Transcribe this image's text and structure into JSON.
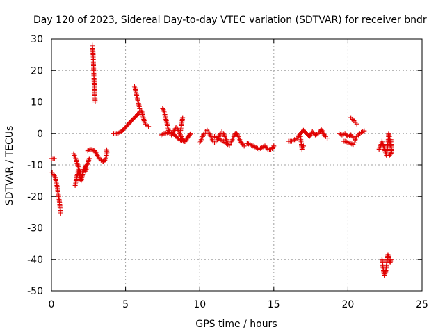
{
  "chart_data": {
    "type": "scatter",
    "title": "Day 120 of 2023, Sidereal Day-to-day VTEC variation (SDTVAR) for receiver bndr",
    "xlabel": "GPS time / hours",
    "ylabel": "SDTVAR / TECUs",
    "xlim": [
      0,
      25
    ],
    "ylim": [
      -50,
      30
    ],
    "xticks": [
      0,
      5,
      10,
      15,
      20,
      25
    ],
    "yticks": [
      -50,
      -40,
      -30,
      -20,
      -10,
      0,
      10,
      20,
      30
    ],
    "grid": true,
    "marker": "plus",
    "color": "#e00000",
    "segments": [
      [
        [
          0.0,
          -8
        ],
        [
          0.1,
          -8
        ],
        [
          0.2,
          -8
        ]
      ],
      [
        [
          0.05,
          -12.5
        ],
        [
          0.15,
          -13
        ],
        [
          0.25,
          -14
        ],
        [
          0.35,
          -16
        ],
        [
          0.45,
          -19
        ],
        [
          0.55,
          -22
        ],
        [
          0.62,
          -25.5
        ]
      ],
      [
        [
          1.6,
          -16.5
        ],
        [
          1.7,
          -14
        ],
        [
          1.8,
          -12
        ],
        [
          1.9,
          -13.5
        ],
        [
          2.0,
          -15
        ],
        [
          2.1,
          -13
        ],
        [
          2.2,
          -11
        ],
        [
          2.3,
          -12
        ],
        [
          2.4,
          -11
        ]
      ],
      [
        [
          1.5,
          -6.5
        ],
        [
          1.6,
          -7.5
        ],
        [
          1.7,
          -9
        ],
        [
          1.8,
          -10.5
        ],
        [
          1.9,
          -12
        ],
        [
          2.0,
          -13
        ],
        [
          2.1,
          -12.5
        ],
        [
          2.2,
          -11.5
        ],
        [
          2.3,
          -10.5
        ],
        [
          2.45,
          -9.5
        ],
        [
          2.55,
          -8
        ]
      ],
      [
        [
          2.45,
          -5.5
        ],
        [
          2.6,
          -5
        ],
        [
          2.75,
          -5.2
        ],
        [
          2.9,
          -5.5
        ],
        [
          3.0,
          -6.2
        ],
        [
          3.1,
          -7
        ],
        [
          3.2,
          -7.8
        ],
        [
          3.35,
          -8.5
        ],
        [
          3.5,
          -9
        ],
        [
          3.6,
          -8.5
        ],
        [
          3.7,
          -7.5
        ],
        [
          3.75,
          -6
        ],
        [
          3.72,
          -5.2
        ]
      ],
      [
        [
          2.75,
          28
        ],
        [
          2.8,
          26
        ],
        [
          2.82,
          24
        ],
        [
          2.85,
          20
        ],
        [
          2.88,
          16
        ],
        [
          2.92,
          13
        ],
        [
          2.95,
          10
        ]
      ],
      [
        [
          4.2,
          0
        ],
        [
          4.4,
          0
        ],
        [
          4.6,
          0.3
        ],
        [
          4.8,
          1
        ],
        [
          5.0,
          2
        ],
        [
          5.2,
          3
        ],
        [
          5.4,
          4
        ],
        [
          5.6,
          5
        ],
        [
          5.8,
          6
        ],
        [
          5.95,
          6.8
        ],
        [
          6.05,
          7.2
        ],
        [
          6.1,
          6.8
        ],
        [
          6.15,
          6
        ],
        [
          6.25,
          4
        ],
        [
          6.35,
          3
        ],
        [
          6.45,
          2.5
        ],
        [
          6.55,
          2.2
        ]
      ],
      [
        [
          5.6,
          15
        ],
        [
          5.7,
          13
        ],
        [
          5.8,
          11
        ],
        [
          5.9,
          9
        ],
        [
          5.95,
          8
        ]
      ],
      [
        [
          7.5,
          8
        ],
        [
          7.6,
          7
        ],
        [
          7.7,
          5
        ],
        [
          7.8,
          3
        ],
        [
          7.9,
          1
        ],
        [
          8.0,
          0
        ],
        [
          8.1,
          -0.5
        ],
        [
          8.2,
          0
        ],
        [
          8.3,
          1
        ],
        [
          8.4,
          2
        ],
        [
          8.5,
          1.5
        ],
        [
          8.6,
          0.5
        ],
        [
          8.7,
          -0.5
        ],
        [
          8.8,
          -1.5
        ],
        [
          8.9,
          -2.2
        ],
        [
          9.0,
          -2.5
        ],
        [
          9.1,
          -2
        ],
        [
          9.2,
          -1.2
        ],
        [
          9.3,
          -0.6
        ],
        [
          9.4,
          0
        ]
      ],
      [
        [
          7.4,
          -0.5
        ],
        [
          7.6,
          0
        ],
        [
          7.8,
          0.2
        ],
        [
          8.0,
          0.5
        ],
        [
          8.2,
          0
        ],
        [
          8.4,
          -1
        ],
        [
          8.6,
          -1.8
        ],
        [
          8.8,
          -2.3
        ],
        [
          9.0,
          -2.6
        ]
      ],
      [
        [
          8.7,
          0.5
        ],
        [
          8.75,
          2
        ],
        [
          8.8,
          3.5
        ],
        [
          8.85,
          5
        ]
      ],
      [
        [
          10.0,
          -3
        ],
        [
          10.1,
          -2
        ],
        [
          10.2,
          -1
        ],
        [
          10.3,
          0
        ],
        [
          10.4,
          0.5
        ],
        [
          10.5,
          1
        ],
        [
          10.6,
          0.5
        ],
        [
          10.7,
          -0.5
        ],
        [
          10.8,
          -1.5
        ],
        [
          10.9,
          -2.5
        ],
        [
          11.0,
          -3
        ],
        [
          11.1,
          -2.5
        ],
        [
          11.2,
          -2
        ],
        [
          11.3,
          -1
        ],
        [
          11.4,
          0
        ],
        [
          11.5,
          0.5
        ],
        [
          11.6,
          0
        ],
        [
          11.7,
          -1
        ],
        [
          11.8,
          -2
        ],
        [
          11.9,
          -3
        ],
        [
          12.0,
          -3.5
        ],
        [
          12.1,
          -3
        ],
        [
          12.2,
          -2
        ],
        [
          12.3,
          -1
        ],
        [
          12.4,
          0
        ],
        [
          12.5,
          0
        ],
        [
          12.6,
          -1
        ],
        [
          12.7,
          -2
        ],
        [
          12.8,
          -2.8
        ],
        [
          12.9,
          -3.5
        ],
        [
          13.0,
          -4
        ]
      ],
      [
        [
          11.0,
          -1
        ],
        [
          11.2,
          -1.5
        ],
        [
          11.4,
          -2
        ],
        [
          11.6,
          -2.5
        ],
        [
          11.8,
          -3.2
        ],
        [
          12.0,
          -3.8
        ]
      ],
      [
        [
          13.2,
          -3.2
        ],
        [
          13.4,
          -3.5
        ],
        [
          13.6,
          -4
        ],
        [
          13.8,
          -4.5
        ],
        [
          14.0,
          -5
        ],
        [
          14.2,
          -4.5
        ],
        [
          14.4,
          -4
        ],
        [
          14.6,
          -5
        ],
        [
          14.8,
          -5.2
        ],
        [
          14.9,
          -4.8
        ],
        [
          15.0,
          -4
        ]
      ],
      [
        [
          16.0,
          -2.5
        ],
        [
          16.2,
          -2.5
        ],
        [
          16.4,
          -2
        ],
        [
          16.6,
          -1.5
        ],
        [
          16.8,
          0
        ],
        [
          17.0,
          1
        ],
        [
          17.2,
          0
        ],
        [
          17.4,
          -1
        ],
        [
          17.6,
          0.5
        ],
        [
          17.8,
          -0.5
        ],
        [
          18.0,
          0
        ],
        [
          18.2,
          1.2
        ],
        [
          18.3,
          0.5
        ],
        [
          18.4,
          -0.5
        ],
        [
          18.5,
          -1
        ],
        [
          18.6,
          -1.5
        ]
      ],
      [
        [
          16.8,
          -1
        ],
        [
          16.85,
          -3
        ],
        [
          16.9,
          -5
        ],
        [
          17.0,
          -4
        ]
      ],
      [
        [
          19.4,
          0
        ],
        [
          19.6,
          -0.5
        ],
        [
          19.8,
          0
        ],
        [
          20.0,
          -1
        ],
        [
          20.2,
          -0.5
        ],
        [
          20.4,
          -1.5
        ],
        [
          20.5,
          -2
        ],
        [
          20.6,
          -1
        ],
        [
          20.7,
          -0.5
        ],
        [
          20.8,
          0
        ],
        [
          20.9,
          0.3
        ],
        [
          21.0,
          0.5
        ],
        [
          21.1,
          0.8
        ]
      ],
      [
        [
          20.2,
          5
        ],
        [
          20.3,
          4.5
        ],
        [
          20.4,
          4
        ],
        [
          20.5,
          3.5
        ],
        [
          20.6,
          3
        ]
      ],
      [
        [
          19.7,
          -2.5
        ],
        [
          19.8,
          -2.5
        ],
        [
          20.35,
          -3.5
        ],
        [
          20.45,
          -3
        ]
      ],
      [
        [
          22.1,
          -5
        ],
        [
          22.2,
          -4
        ],
        [
          22.3,
          -2.5
        ],
        [
          22.4,
          -4
        ],
        [
          22.5,
          -5.5
        ],
        [
          22.6,
          -7
        ],
        [
          22.7,
          -3
        ],
        [
          22.75,
          0
        ],
        [
          22.8,
          -1
        ],
        [
          22.85,
          -4
        ],
        [
          22.9,
          -2
        ],
        [
          22.95,
          -6
        ],
        [
          22.8,
          -7
        ]
      ],
      [
        [
          22.3,
          -40
        ],
        [
          22.35,
          -42
        ],
        [
          22.4,
          -43.5
        ],
        [
          22.45,
          -45
        ],
        [
          22.55,
          -44
        ],
        [
          22.6,
          -42
        ],
        [
          22.65,
          -40
        ],
        [
          22.7,
          -38.5
        ],
        [
          22.75,
          -39
        ],
        [
          22.8,
          -40.5
        ],
        [
          22.85,
          -41
        ],
        [
          22.9,
          -40
        ]
      ]
    ]
  }
}
